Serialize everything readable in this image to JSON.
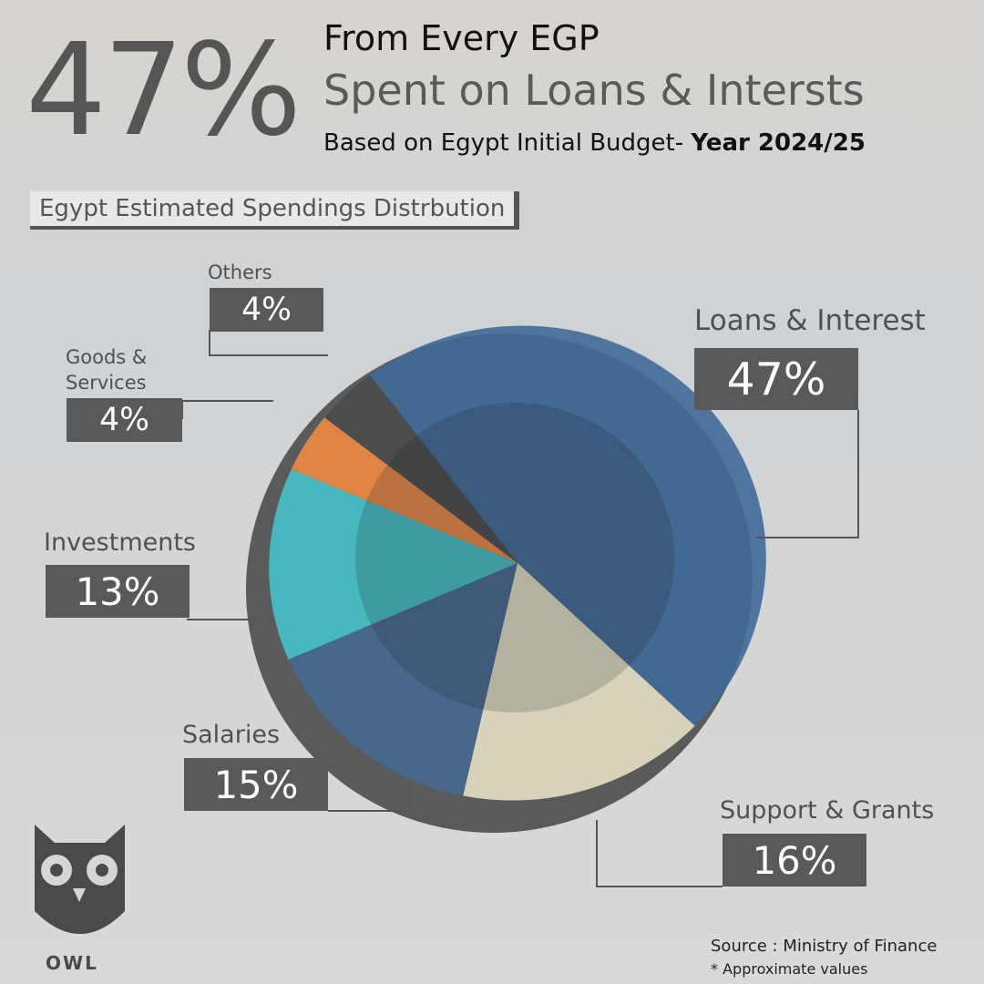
{
  "header": {
    "headline": "47%",
    "line1": "From Every EGP",
    "line2": "Spent on Loans & Intersts",
    "line3": "Based on Egypt Initial Budget- ",
    "year": "Year 2024/25"
  },
  "chart_data": {
    "type": "pie",
    "title": "Egypt Estimated Spendings Distrbution",
    "categories": [
      "Loans & Interest",
      "Support & Grants",
      "Salaries",
      "Investments",
      "Goods & Services",
      "Others"
    ],
    "values": [
      47,
      16,
      15,
      13,
      4,
      4
    ],
    "value_labels": [
      "47%",
      "16%",
      "15%",
      "13%",
      "4%",
      "4%"
    ],
    "colors": [
      "#3f6a98",
      "#e6dfc4",
      "#45698f",
      "#45c2c8",
      "#f08a44",
      "#4a4a4a"
    ]
  },
  "footer": {
    "source": "Source : Ministry of Finance",
    "note": "* Approximate values",
    "brand": "OWL"
  }
}
